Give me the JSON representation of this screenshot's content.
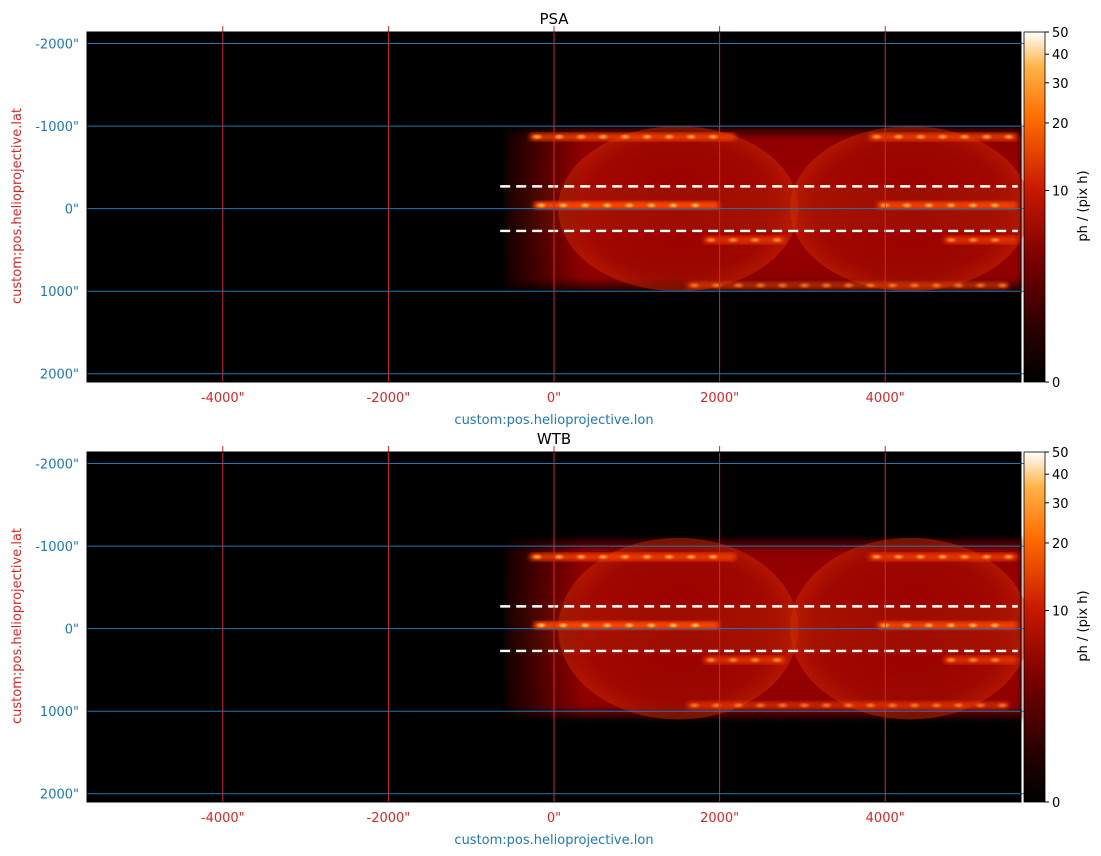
{
  "colors": {
    "lon_axis": "#d62728",
    "lat_axis": "#1f77b4",
    "background": "#000000",
    "guide_line": "#ffffff"
  },
  "chart_data": [
    {
      "type": "heatmap",
      "title": "PSA",
      "xlabel": "custom:pos.helioprojective.lon",
      "ylabel": "custom:pos.helioprojective.lat",
      "x_unit": "arcsec",
      "y_unit": "arcsec",
      "xlim": [
        -5640,
        5640
      ],
      "ylim": [
        2100,
        -2140
      ],
      "x_ticks": [
        -4000,
        -2000,
        0,
        2000,
        4000
      ],
      "x_tick_labels": [
        "-4000\"",
        "-2000\"",
        "0\"",
        "2000\"",
        "4000\""
      ],
      "y_ticks": [
        -2000,
        -1000,
        0,
        1000,
        2000
      ],
      "y_tick_labels": [
        "-2000\"",
        "-1000\"",
        "0\"",
        "1000\"",
        "2000\""
      ],
      "y_inverted": true,
      "grid": true,
      "colormap": "gist_heat",
      "colorbar": {
        "label": "ph / (pix h)",
        "scale": "asinh",
        "range": [
          0,
          50
        ],
        "ticks": [
          0,
          10,
          20,
          30,
          40,
          50
        ],
        "tick_labels": [
          "0",
          "10",
          "20",
          "30",
          "40",
          "50"
        ]
      },
      "emission_region": {
        "lon": [
          -600,
          5640
        ],
        "lat": [
          -1000,
          1000
        ]
      },
      "dashed_lines": [
        {
          "lat": -270,
          "lon": [
            -650,
            5600
          ]
        },
        {
          "lat": 270,
          "lon": [
            -650,
            5600
          ]
        }
      ]
    },
    {
      "type": "heatmap",
      "title": "WTB",
      "xlabel": "custom:pos.helioprojective.lon",
      "ylabel": "custom:pos.helioprojective.lat",
      "x_unit": "arcsec",
      "y_unit": "arcsec",
      "xlim": [
        -5640,
        5640
      ],
      "ylim": [
        2100,
        -2140
      ],
      "x_ticks": [
        -4000,
        -2000,
        0,
        2000,
        4000
      ],
      "x_tick_labels": [
        "-4000\"",
        "-2000\"",
        "0\"",
        "2000\"",
        "4000\""
      ],
      "y_ticks": [
        -2000,
        -1000,
        0,
        1000,
        2000
      ],
      "y_tick_labels": [
        "-2000\"",
        "-1000\"",
        "0\"",
        "1000\"",
        "2000\""
      ],
      "y_inverted": true,
      "grid": true,
      "colormap": "gist_heat",
      "colorbar": {
        "label": "ph / (pix h)",
        "scale": "asinh",
        "range": [
          0,
          50
        ],
        "ticks": [
          0,
          10,
          20,
          30,
          40,
          50
        ],
        "tick_labels": [
          "0",
          "10",
          "20",
          "30",
          "40",
          "50"
        ]
      },
      "emission_region": {
        "lon": [
          -600,
          5640
        ],
        "lat": [
          -1100,
          1100
        ]
      },
      "dashed_lines": [
        {
          "lat": -270,
          "lon": [
            -650,
            5600
          ]
        },
        {
          "lat": 270,
          "lon": [
            -650,
            5600
          ]
        }
      ]
    }
  ]
}
